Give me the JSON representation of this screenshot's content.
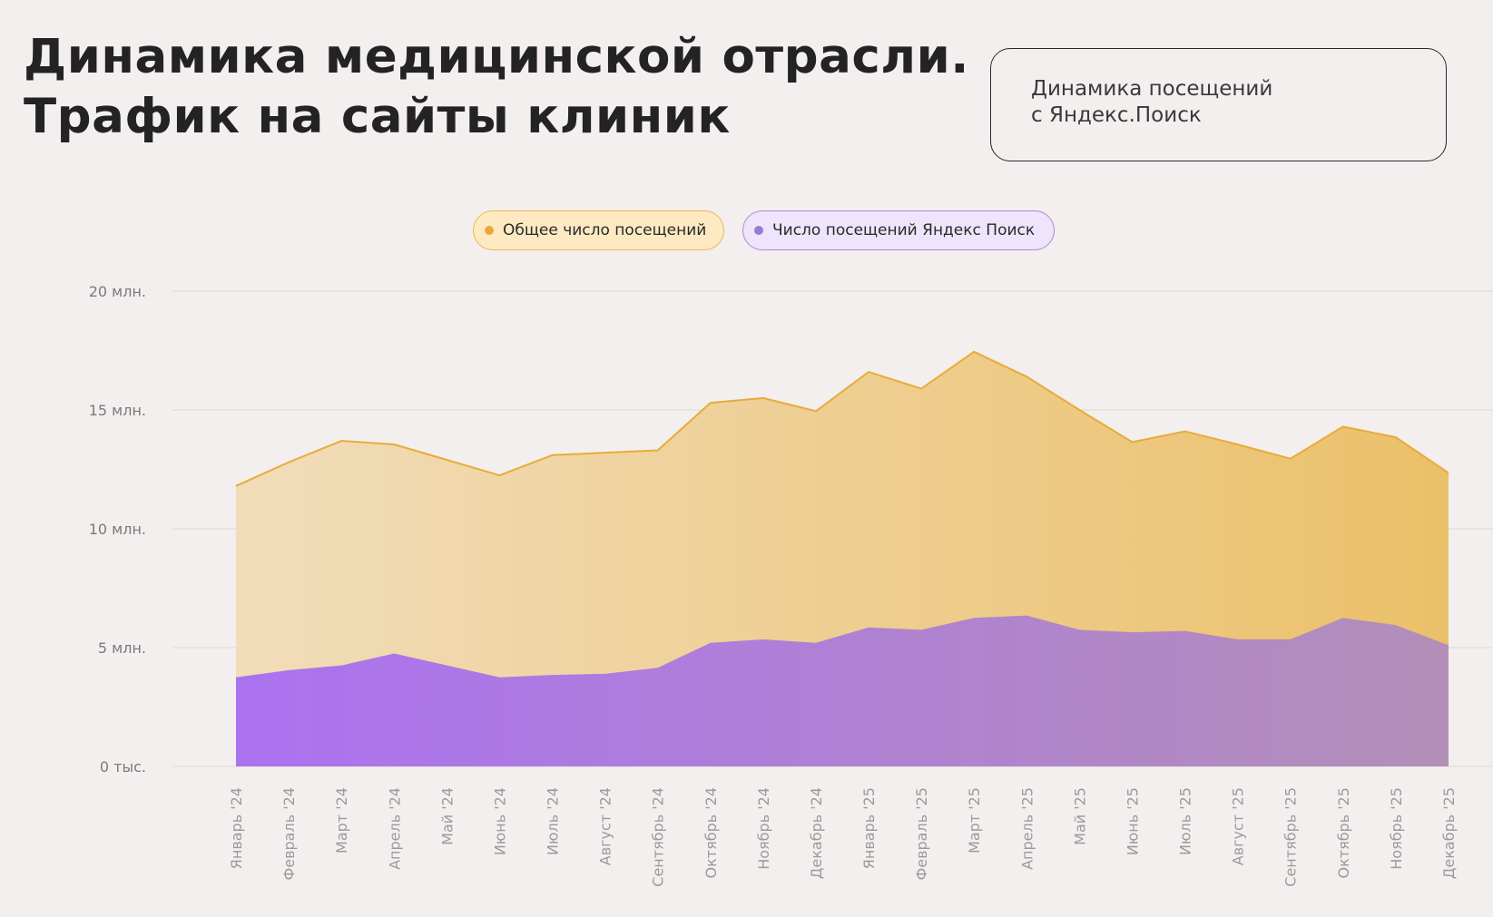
{
  "title": {
    "line1": "Динамика медицинской отрасли.",
    "line2": "Трафик на сайты клиник"
  },
  "info_box": {
    "line1": "Динамика посещений",
    "line2": "с Яндекс.Поиск"
  },
  "colors": {
    "background": "#f3efee",
    "total_stroke": "#e8ab3c",
    "total_fill_start": "#f1ddb9",
    "total_fill_end": "#ebc06a",
    "yandex_fill_start": "#ab72f0",
    "yandex_fill_end": "#b38fb8",
    "total_pill_bg": "#fde9c2",
    "total_pill_border": "#ebb94e",
    "total_dot": "#e8a93a",
    "yandex_pill_bg": "#eee4fb",
    "yandex_pill_border": "#a98bd6",
    "yandex_dot": "#9b7ad0",
    "grid": "#dcd8d7",
    "tick_label": "#7a7a7a",
    "x_label": "#9a9a9a"
  },
  "chart_data": {
    "type": "area",
    "title": "Динамика медицинской отрасли. Трафик на сайты клиник",
    "ylim": [
      0,
      20
    ],
    "y_unit": "млн.",
    "y_ticks": [
      {
        "value": 0,
        "label": "0 тыс."
      },
      {
        "value": 5,
        "label": "5 млн."
      },
      {
        "value": 10,
        "label": "10 млн."
      },
      {
        "value": 15,
        "label": "15 млн."
      },
      {
        "value": 20,
        "label": "20 млн."
      }
    ],
    "grid": true,
    "categories": [
      "Январь '24",
      "Февраль '24",
      "Март '24",
      "Апрель '24",
      "Май '24",
      "Июнь '24",
      "Июль '24",
      "Август '24",
      "Сентябрь '24",
      "Октябрь '24",
      "Ноябрь '24",
      "Декабрь '24",
      "Январь '25",
      "Февраль '25",
      "Март '25",
      "Апрель '25",
      "Май '25",
      "Июнь '25",
      "Июль '25",
      "Август '25",
      "Сентябрь '25",
      "Октябрь '25",
      "Ноябрь '25",
      "Декабрь '25"
    ],
    "series": [
      {
        "name": "Общее число посещений",
        "values": [
          11.8,
          12.8,
          13.7,
          13.55,
          12.9,
          12.25,
          13.1,
          13.2,
          13.3,
          15.3,
          15.5,
          14.95,
          16.6,
          15.9,
          17.45,
          16.4,
          15.0,
          13.65,
          14.1,
          13.55,
          12.95,
          14.3,
          13.85,
          12.35
        ]
      },
      {
        "name": "Число посещений Яндекс Поиск",
        "values": [
          3.75,
          4.05,
          4.25,
          4.75,
          4.25,
          3.75,
          3.85,
          3.9,
          4.15,
          5.2,
          5.35,
          5.2,
          5.85,
          5.75,
          6.25,
          6.35,
          5.75,
          5.65,
          5.7,
          5.35,
          5.35,
          6.25,
          5.95,
          5.1
        ]
      }
    ]
  }
}
